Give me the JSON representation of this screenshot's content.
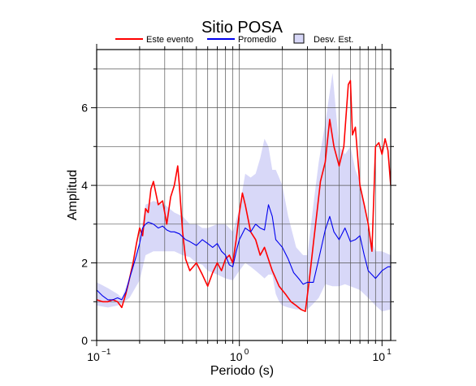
{
  "chart_data": {
    "type": "line",
    "title": "Sitio POSA",
    "xlabel": "Periodo (s)",
    "ylabel": "Amplitud",
    "xscale": "log",
    "xlim": [
      0.1,
      11.5
    ],
    "ylim": [
      0,
      7.5
    ],
    "x_ticks": [
      {
        "base": "10",
        "exp": "−1",
        "value": 0.1
      },
      {
        "base": "10",
        "exp": "0",
        "value": 1
      },
      {
        "base": "10",
        "exp": "1",
        "value": 10
      }
    ],
    "y_ticks": [
      {
        "label": "0",
        "value": 0
      },
      {
        "label": "2",
        "value": 2
      },
      {
        "label": "4",
        "value": 4
      },
      {
        "label": "6",
        "value": 6
      }
    ],
    "grid": true,
    "legend": {
      "position": "top",
      "items": [
        {
          "label": "Este evento",
          "kind": "line",
          "color": "#ff0000"
        },
        {
          "label": "Promedio",
          "kind": "line",
          "color": "#0000ee"
        },
        {
          "label": "Desv. Est.",
          "kind": "box",
          "color": "#d8d8f8"
        }
      ]
    },
    "series": [
      {
        "name": "Este evento",
        "color": "#ff0000",
        "x": [
          0.1,
          0.11,
          0.12,
          0.13,
          0.14,
          0.15,
          0.16,
          0.17,
          0.18,
          0.19,
          0.2,
          0.21,
          0.22,
          0.23,
          0.24,
          0.25,
          0.27,
          0.29,
          0.31,
          0.33,
          0.35,
          0.37,
          0.38,
          0.4,
          0.42,
          0.45,
          0.5,
          0.55,
          0.6,
          0.65,
          0.7,
          0.75,
          0.8,
          0.85,
          0.9,
          0.95,
          1.0,
          1.05,
          1.1,
          1.2,
          1.3,
          1.4,
          1.5,
          1.7,
          1.9,
          2.1,
          2.3,
          2.5,
          2.7,
          2.9,
          3.1,
          3.3,
          3.5,
          3.7,
          4.0,
          4.3,
          4.6,
          5.0,
          5.4,
          5.8,
          6.0,
          6.2,
          6.5,
          7.0,
          7.5,
          8.0,
          8.5,
          9.0,
          9.5,
          10.0,
          10.5,
          11.0,
          11.5
        ],
        "values": [
          1.05,
          1.0,
          1.0,
          1.05,
          1.0,
          0.85,
          1.2,
          1.6,
          2.0,
          2.5,
          2.9,
          2.7,
          3.4,
          3.3,
          3.9,
          4.1,
          3.5,
          3.6,
          3.0,
          3.7,
          4.0,
          4.5,
          4.0,
          2.8,
          2.1,
          1.8,
          2.0,
          1.7,
          1.4,
          1.75,
          2.0,
          1.8,
          2.1,
          2.2,
          2.0,
          2.6,
          3.3,
          3.8,
          3.5,
          2.8,
          2.6,
          2.2,
          2.4,
          1.8,
          1.4,
          1.2,
          1.0,
          0.9,
          0.8,
          0.75,
          1.6,
          2.5,
          3.3,
          4.1,
          4.6,
          5.7,
          5.0,
          4.5,
          5.0,
          6.6,
          6.7,
          5.3,
          5.5,
          4.0,
          3.5,
          3.0,
          2.3,
          5.0,
          5.1,
          4.8,
          5.2,
          4.9,
          4.0
        ]
      },
      {
        "name": "Promedio",
        "color": "#0000ee",
        "x": [
          0.1,
          0.11,
          0.12,
          0.13,
          0.14,
          0.15,
          0.16,
          0.17,
          0.18,
          0.19,
          0.2,
          0.21,
          0.22,
          0.23,
          0.25,
          0.27,
          0.29,
          0.31,
          0.33,
          0.35,
          0.38,
          0.42,
          0.45,
          0.5,
          0.55,
          0.6,
          0.65,
          0.7,
          0.75,
          0.8,
          0.85,
          0.9,
          0.95,
          1.0,
          1.1,
          1.2,
          1.3,
          1.4,
          1.5,
          1.6,
          1.7,
          1.8,
          1.9,
          2.0,
          2.2,
          2.4,
          2.6,
          2.8,
          3.0,
          3.3,
          3.6,
          4.0,
          4.3,
          4.6,
          5.0,
          5.5,
          6.0,
          6.5,
          7.0,
          7.5,
          8.0,
          9.0,
          10.0,
          11.0,
          11.5
        ],
        "values": [
          1.3,
          1.15,
          1.05,
          1.05,
          1.1,
          1.05,
          1.25,
          1.6,
          1.9,
          2.2,
          2.5,
          2.9,
          3.0,
          3.05,
          3.0,
          2.9,
          2.95,
          2.85,
          2.8,
          2.8,
          2.75,
          2.6,
          2.55,
          2.45,
          2.6,
          2.5,
          2.4,
          2.5,
          2.3,
          2.2,
          1.95,
          1.9,
          2.3,
          2.6,
          2.9,
          2.8,
          3.0,
          2.9,
          2.85,
          3.5,
          3.2,
          2.6,
          2.5,
          2.4,
          2.1,
          1.75,
          1.6,
          1.45,
          1.5,
          1.5,
          2.1,
          2.85,
          3.2,
          2.8,
          2.6,
          2.9,
          2.55,
          2.6,
          2.7,
          2.2,
          1.8,
          1.6,
          1.8,
          1.9,
          1.9
        ]
      }
    ],
    "band": {
      "name": "Desv. Est.",
      "color": "#d8d8f8",
      "x": [
        0.1,
        0.12,
        0.14,
        0.15,
        0.17,
        0.2,
        0.22,
        0.25,
        0.3,
        0.35,
        0.4,
        0.45,
        0.5,
        0.55,
        0.6,
        0.7,
        0.8,
        0.9,
        1.0,
        1.1,
        1.2,
        1.3,
        1.4,
        1.5,
        1.6,
        1.7,
        1.8,
        1.9,
        2.0,
        2.2,
        2.5,
        2.8,
        3.0,
        3.3,
        3.6,
        4.0,
        4.5,
        5.0,
        5.5,
        6.0,
        6.5,
        7.0,
        8.0,
        9.0,
        10.0,
        11.5
      ],
      "upper": [
        1.5,
        1.35,
        1.2,
        1.1,
        1.6,
        2.6,
        3.5,
        3.6,
        3.5,
        3.3,
        3.2,
        3.0,
        3.0,
        2.9,
        2.9,
        3.0,
        3.0,
        2.8,
        3.4,
        4.3,
        4.2,
        4.3,
        4.7,
        5.2,
        5.0,
        4.4,
        4.4,
        4.2,
        4.0,
        3.2,
        2.4,
        2.2,
        2.2,
        3.5,
        4.6,
        5.6,
        6.9,
        5.0,
        4.8,
        5.0,
        4.4,
        4.1,
        2.8,
        2.3,
        2.3,
        2.2
      ],
      "lower": [
        0.9,
        0.85,
        0.9,
        0.95,
        1.1,
        1.55,
        2.2,
        2.3,
        2.3,
        2.3,
        2.2,
        2.15,
        2.0,
        1.95,
        1.8,
        1.7,
        1.6,
        1.55,
        1.8,
        2.0,
        1.9,
        1.8,
        1.7,
        1.6,
        1.7,
        1.7,
        1.2,
        1.0,
        0.9,
        0.85,
        0.8,
        0.8,
        0.8,
        0.95,
        1.1,
        1.45,
        1.4,
        1.4,
        1.45,
        1.4,
        1.35,
        1.3,
        1.1,
        0.9,
        0.75,
        0.8
      ]
    }
  }
}
